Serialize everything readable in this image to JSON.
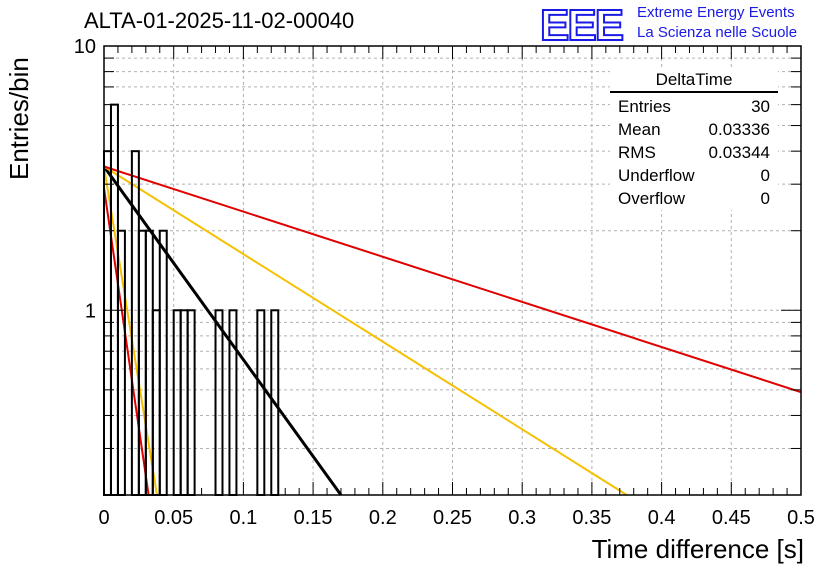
{
  "header": {
    "title": "ALTA-01-2025-11-02-00040",
    "logo_text": "EEE",
    "logo_line1": "Extreme Energy Events",
    "logo_line2": "La Scienza nelle Scuole"
  },
  "stats": {
    "title": "DeltaTime",
    "rows": [
      {
        "label": "Entries",
        "value": "30"
      },
      {
        "label": "Mean",
        "value": "0.03336"
      },
      {
        "label": "RMS",
        "value": "0.03344"
      },
      {
        "label": "Underflow",
        "value": "0"
      },
      {
        "label": "Overflow",
        "value": "0"
      }
    ]
  },
  "colors": {
    "hist": "#000000",
    "red": "#e00000",
    "yellow": "#f5c000",
    "black": "#000000",
    "logo": "#1a1ae6",
    "grid": "#b0b0b0"
  },
  "chart_data": {
    "type": "histogram",
    "title": "ALTA-01-2025-11-02-00040",
    "xlabel": "Time difference [s]",
    "ylabel": "Entries/bin",
    "xlim": [
      0,
      0.5
    ],
    "ylim": [
      0.2,
      10
    ],
    "yscale": "log",
    "grid": true,
    "x_ticks": [
      0,
      0.05,
      0.1,
      0.15,
      0.2,
      0.25,
      0.3,
      0.35,
      0.4,
      0.45,
      0.5
    ],
    "x_tick_labels": [
      "0",
      "0.05",
      "0.1",
      "0.15",
      "0.2",
      "0.25",
      "0.3",
      "0.35",
      "0.4",
      "0.45",
      "0.5"
    ],
    "y_tick_labels": [
      {
        "value": 1,
        "label": "1"
      },
      {
        "value": 10,
        "label": "10"
      }
    ],
    "bin_width": 0.005,
    "histogram": [
      {
        "x": 0.0,
        "count": 4
      },
      {
        "x": 0.005,
        "count": 6
      },
      {
        "x": 0.01,
        "count": 2
      },
      {
        "x": 0.015,
        "count": 0
      },
      {
        "x": 0.02,
        "count": 4
      },
      {
        "x": 0.025,
        "count": 2
      },
      {
        "x": 0.03,
        "count": 2
      },
      {
        "x": 0.035,
        "count": 1
      },
      {
        "x": 0.04,
        "count": 2
      },
      {
        "x": 0.045,
        "count": 0
      },
      {
        "x": 0.05,
        "count": 1
      },
      {
        "x": 0.055,
        "count": 1
      },
      {
        "x": 0.06,
        "count": 1
      },
      {
        "x": 0.065,
        "count": 0
      },
      {
        "x": 0.07,
        "count": 0
      },
      {
        "x": 0.075,
        "count": 0
      },
      {
        "x": 0.08,
        "count": 1
      },
      {
        "x": 0.085,
        "count": 0
      },
      {
        "x": 0.09,
        "count": 1
      },
      {
        "x": 0.095,
        "count": 0
      },
      {
        "x": 0.1,
        "count": 0
      },
      {
        "x": 0.105,
        "count": 0
      },
      {
        "x": 0.11,
        "count": 1
      },
      {
        "x": 0.115,
        "count": 0
      },
      {
        "x": 0.12,
        "count": 1
      }
    ],
    "fits": [
      {
        "name": "red-steep",
        "color": "red",
        "points": [
          [
            0.0,
            2.9
          ],
          [
            0.032,
            0.2
          ]
        ]
      },
      {
        "name": "yellow-steep",
        "color": "yellow",
        "points": [
          [
            0.0,
            3.5
          ],
          [
            0.038,
            0.2
          ]
        ]
      },
      {
        "name": "black",
        "color": "black",
        "points": [
          [
            0.0,
            3.5
          ],
          [
            0.17,
            0.2
          ]
        ]
      },
      {
        "name": "yellow-flat",
        "color": "yellow",
        "points": [
          [
            0.0,
            3.5
          ],
          [
            0.375,
            0.2
          ]
        ]
      },
      {
        "name": "red-flat",
        "color": "red",
        "points": [
          [
            0.0,
            3.5
          ],
          [
            0.5,
            0.49
          ]
        ]
      }
    ]
  }
}
